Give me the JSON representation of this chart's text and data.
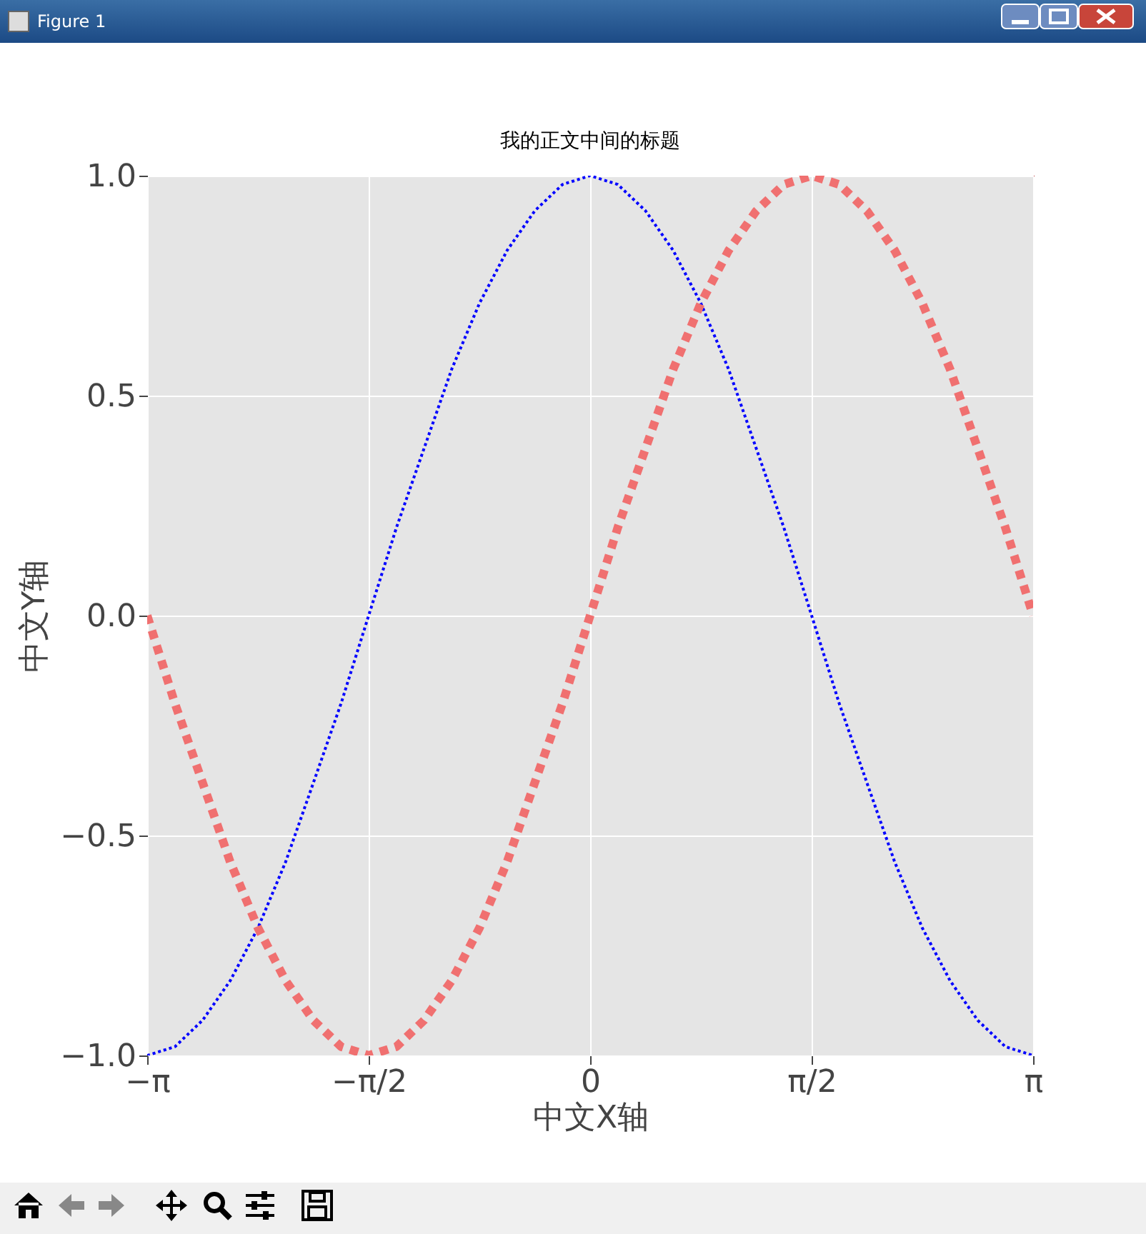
{
  "chart_data": {
    "type": "line",
    "title": "我的正文中间的标题",
    "xlabel": "中文X轴",
    "ylabel": "中文Y轴",
    "annotations": [
      "Figure 1"
    ],
    "x": [
      -3.142,
      -2.945,
      -2.749,
      -2.553,
      -2.356,
      -2.16,
      -1.963,
      -1.767,
      -1.571,
      -1.374,
      -1.178,
      -0.982,
      -0.785,
      -0.589,
      -0.393,
      -0.196,
      0,
      0.196,
      0.393,
      0.589,
      0.785,
      0.982,
      1.178,
      1.374,
      1.571,
      1.767,
      1.963,
      2.16,
      2.356,
      2.553,
      2.749,
      2.945,
      3.142
    ],
    "series": [
      {
        "color": "#0000ff",
        "line_style": "dotted",
        "values": [
          -1,
          -0.98,
          -0.92,
          -0.83,
          -0.71,
          -0.56,
          -0.38,
          -0.2,
          0,
          0.2,
          0.38,
          0.56,
          0.71,
          0.83,
          0.92,
          0.98,
          1,
          0.98,
          0.92,
          0.83,
          0.71,
          0.56,
          0.38,
          0.2,
          0,
          -0.2,
          -0.38,
          -0.56,
          -0.71,
          -0.83,
          -0.92,
          -0.98,
          -1
        ]
      },
      {
        "color": "#f07070",
        "line_style": "dashed",
        "values": [
          0,
          -0.2,
          -0.38,
          -0.56,
          -0.71,
          -0.83,
          -0.92,
          -0.98,
          -1,
          -0.98,
          -0.92,
          -0.83,
          -0.71,
          -0.56,
          -0.38,
          -0.2,
          0,
          0.2,
          0.38,
          0.56,
          0.71,
          0.83,
          0.92,
          0.98,
          1,
          0.98,
          0.92,
          0.83,
          0.71,
          0.56,
          0.38,
          0.2,
          0
        ]
      }
    ],
    "xlim": [
      -3.142,
      3.142
    ],
    "xticks": [
      {
        "value": -3.142,
        "label": "−π"
      },
      {
        "value": -1.571,
        "label": "−π/2"
      },
      {
        "value": 0,
        "label": "0"
      },
      {
        "value": 1.571,
        "label": "π/2"
      },
      {
        "value": 3.142,
        "label": "π"
      }
    ],
    "ylim": [
      -1,
      1
    ],
    "yticks": [
      {
        "value": -1,
        "label": "−1.0"
      },
      {
        "value": -0.5,
        "label": "−0.5"
      },
      {
        "value": 0,
        "label": "0.0"
      },
      {
        "value": 0.5,
        "label": "0.5"
      },
      {
        "value": 1,
        "label": "1.0"
      }
    ],
    "grid": true,
    "marker": "none"
  }
}
